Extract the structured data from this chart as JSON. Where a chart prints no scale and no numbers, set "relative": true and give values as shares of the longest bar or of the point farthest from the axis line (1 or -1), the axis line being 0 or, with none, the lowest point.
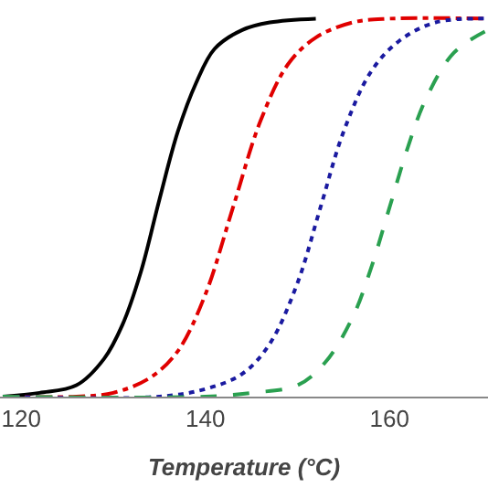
{
  "chart_data": {
    "type": "line",
    "xlabel": "Temperature (°C)",
    "relative": true,
    "xlim": [
      117.7,
      170.7
    ],
    "xticks": [
      120,
      140,
      160
    ],
    "tick_labels": "x",
    "marker": "none",
    "series": [
      {
        "color": "#000000",
        "line_style": "solid",
        "x": [
          118,
          122,
          126,
          129,
          131,
          133,
          135,
          137,
          139,
          141,
          144,
          147,
          152
        ],
        "values": [
          0.0,
          0.01,
          0.03,
          0.1,
          0.19,
          0.33,
          0.52,
          0.7,
          0.83,
          0.92,
          0.97,
          0.99,
          1.0
        ]
      },
      {
        "color": "#e00000",
        "line_style": "dashdot",
        "x": [
          118,
          126,
          130,
          134,
          137,
          140,
          143,
          146,
          149,
          152,
          156,
          160,
          170.7
        ],
        "values": [
          0.0,
          0.0,
          0.01,
          0.05,
          0.12,
          0.27,
          0.5,
          0.73,
          0.88,
          0.95,
          0.99,
          1.0,
          1.0
        ]
      },
      {
        "color": "#1a1aa0",
        "line_style": "dotted",
        "x": [
          118,
          135,
          140,
          144,
          147,
          150,
          152.5,
          155,
          158,
          161,
          165,
          170.7
        ],
        "values": [
          0.0,
          0.0,
          0.02,
          0.06,
          0.14,
          0.3,
          0.5,
          0.7,
          0.86,
          0.94,
          0.99,
          1.0
        ]
      },
      {
        "color": "#2aa050",
        "line_style": "dashed",
        "x": [
          118,
          140,
          145,
          150,
          153,
          156,
          158,
          160,
          162,
          164,
          167,
          170.7
        ],
        "values": [
          0.0,
          0.0,
          0.01,
          0.03,
          0.09,
          0.21,
          0.34,
          0.5,
          0.66,
          0.79,
          0.91,
          0.97
        ]
      }
    ]
  }
}
